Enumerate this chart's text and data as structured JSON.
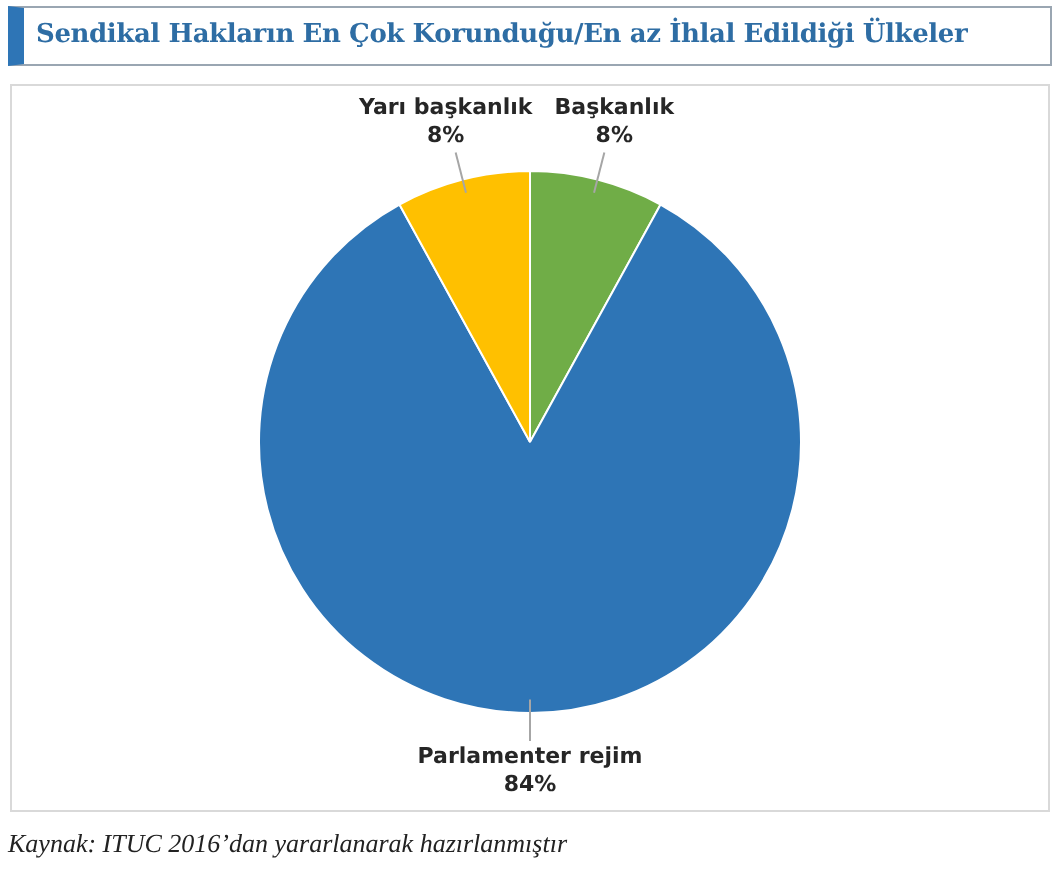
{
  "chart_data": {
    "type": "pie",
    "title": "Sendikal Hakların En Çok Korunduğu/En az İhlal Edildiği Ülkeler",
    "categories": [
      "Başkanlık",
      "Parlamenter rejim",
      "Yarı başkanlık"
    ],
    "values": [
      8,
      84,
      8
    ],
    "colors": [
      "#70ad47",
      "#2e75b6",
      "#ffc000"
    ],
    "value_labels": [
      "8%",
      "84%",
      "8%"
    ],
    "legend": false,
    "annotations": [
      "Kaynak: ITUC 2016’dan yararlanarak hazırlanmıştır"
    ]
  }
}
